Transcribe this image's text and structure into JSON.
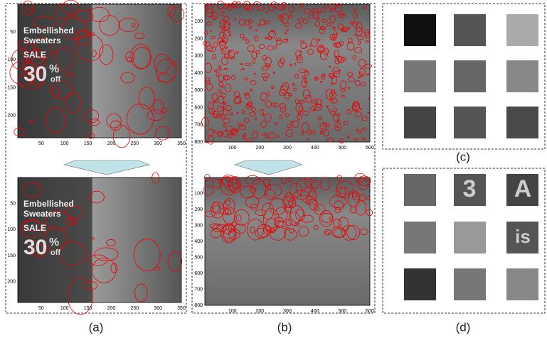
{
  "panels": {
    "a": {
      "caption": "(a)",
      "yticks": [
        50,
        100,
        150,
        200
      ],
      "xticks": [
        50,
        100,
        150,
        200,
        250,
        300,
        350
      ],
      "image_text": {
        "line1": "Embellished",
        "line2": "Sweaters",
        "sale": "SALE",
        "number": "30",
        "percent": "%",
        "off": "off"
      }
    },
    "b": {
      "caption": "(b)",
      "yticks": [
        100,
        200,
        300,
        400,
        500,
        600,
        700,
        800
      ],
      "xticks": [
        100,
        200,
        300,
        400,
        500,
        600
      ]
    },
    "c": {
      "caption": "(c)"
    },
    "d": {
      "caption": "(d)",
      "thumb_text": [
        "3",
        "A",
        "is"
      ]
    }
  }
}
